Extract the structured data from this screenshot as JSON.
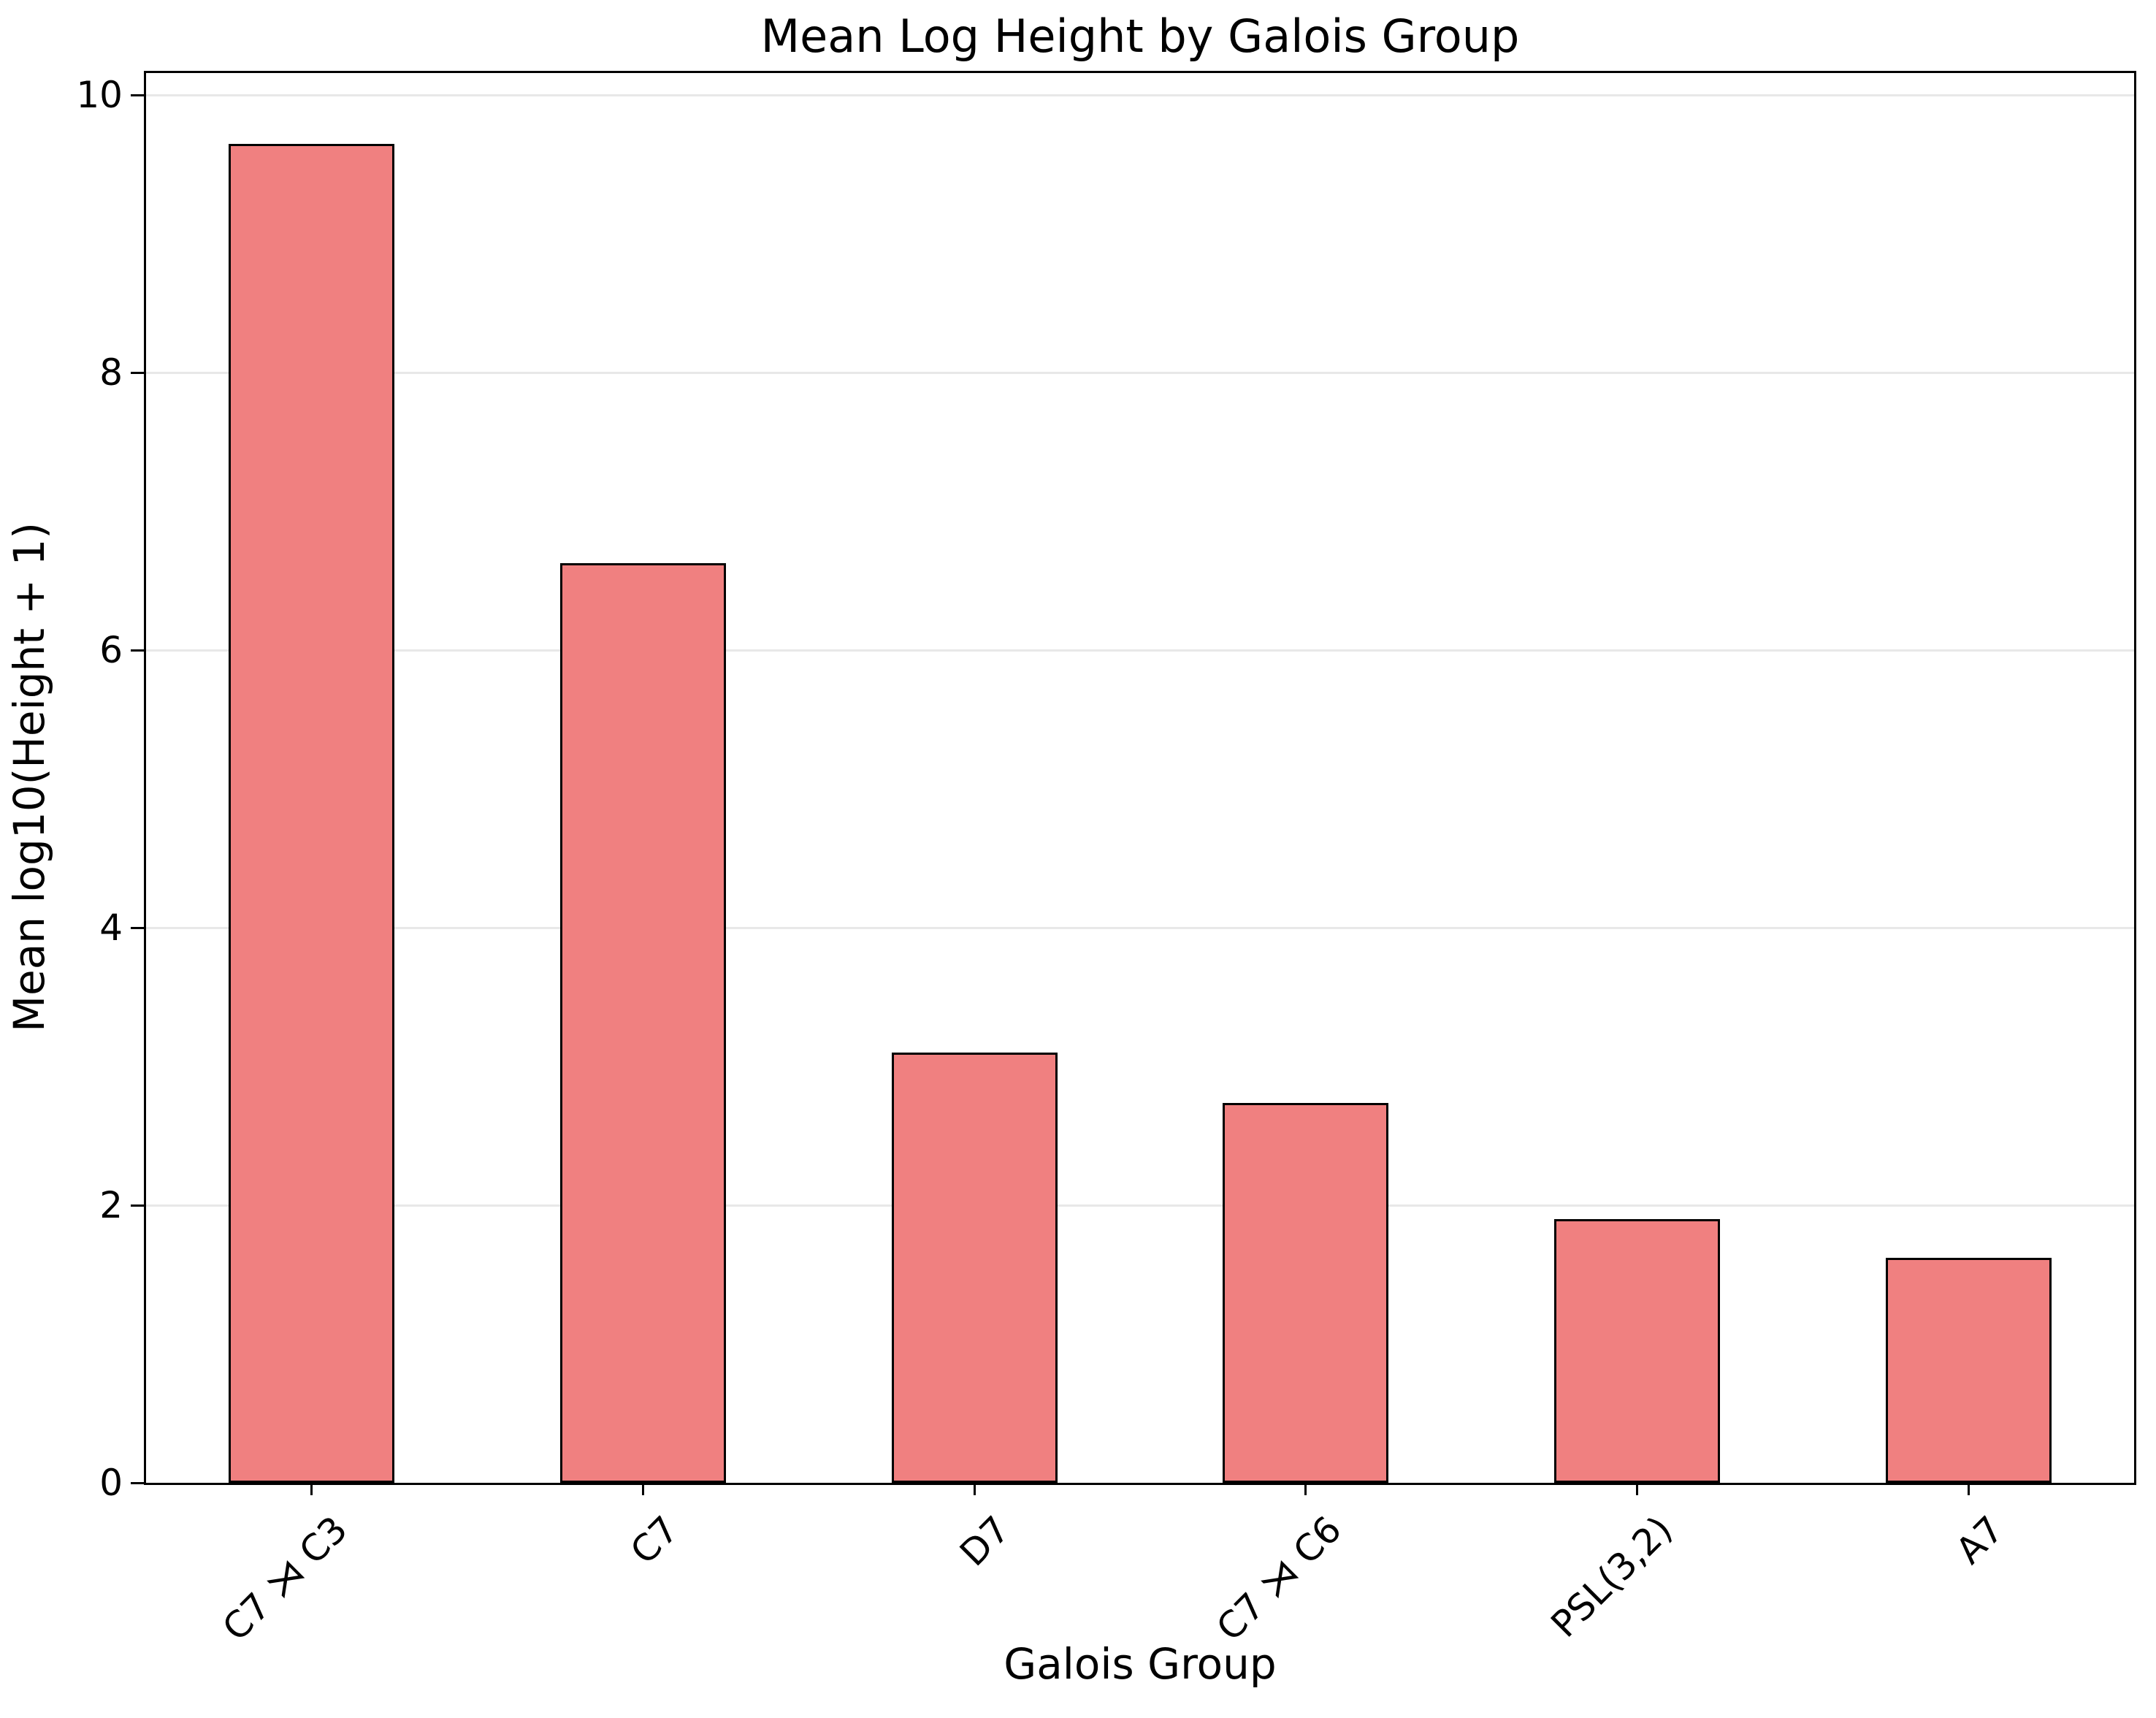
{
  "chart_data": {
    "type": "bar",
    "title": "Mean Log Height by Galois Group",
    "xlabel": "Galois Group",
    "ylabel": "Mean log10(Height + 1)",
    "categories": [
      "C7 ⋊ C3",
      "C7",
      "D7",
      "C7 ⋊ C6",
      "PSL(3,2)",
      "A7"
    ],
    "values": [
      9.65,
      6.63,
      3.1,
      2.74,
      1.9,
      1.62
    ],
    "yticks": [
      0,
      2,
      4,
      6,
      8,
      10
    ],
    "ylim": [
      0,
      10.16
    ],
    "grid": "y",
    "grid_color": "#e8e8e8",
    "bar_color": "#f08080",
    "bar_edge_color": "#000000",
    "spine_color": "#000000",
    "background": "#ffffff",
    "bar_width_frac": 0.5,
    "x_tick_label_rotation_deg": 45,
    "legend_position": "none"
  }
}
